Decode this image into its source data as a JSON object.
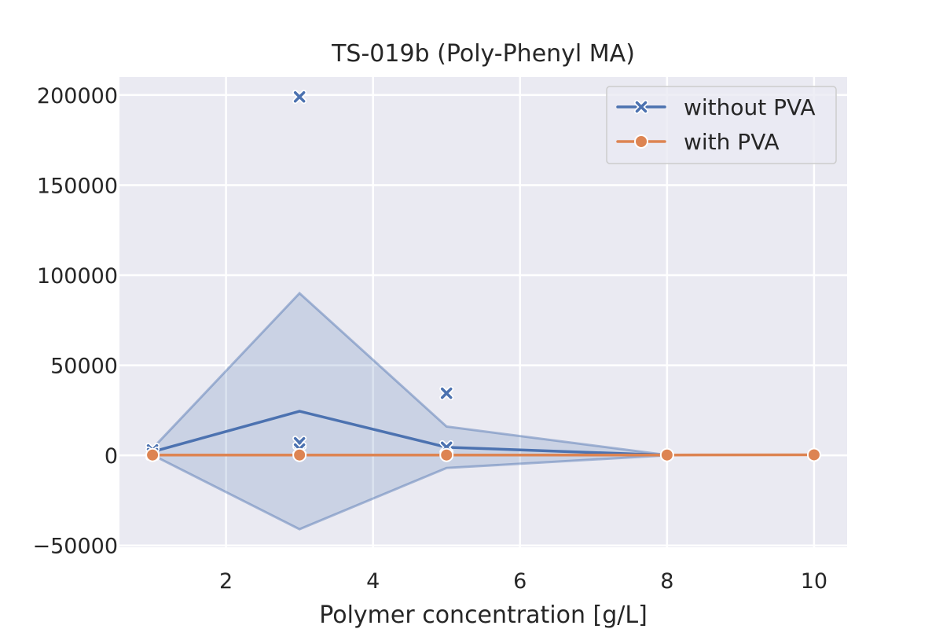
{
  "chart_data": {
    "type": "line",
    "title": "TS-019b (Poly-Phenyl MA)",
    "xlabel": "Polymer concentration [g/L]",
    "ylabel": "",
    "xlim": [
      0.55,
      10.45
    ],
    "ylim": [
      -51000,
      210000
    ],
    "xticks": [
      2,
      4,
      6,
      8,
      10
    ],
    "yticks": [
      -50000,
      0,
      50000,
      100000,
      150000,
      200000
    ],
    "ytick_labels": [
      "−50000",
      "0",
      "50000",
      "100000",
      "150000",
      "200000"
    ],
    "grid": true,
    "legend_position": "top-right",
    "series": [
      {
        "name": "without PVA",
        "color": "#4c72b0",
        "marker": "x",
        "line": [
          {
            "x": 1,
            "y": 2000
          },
          {
            "x": 3,
            "y": 24500
          },
          {
            "x": 5,
            "y": 4500
          },
          {
            "x": 8,
            "y": 100
          }
        ],
        "band": [
          {
            "x": 1,
            "lo": 200,
            "hi": 3800
          },
          {
            "x": 3,
            "lo": -41000,
            "hi": 90000
          },
          {
            "x": 5,
            "lo": -7000,
            "hi": 16000
          },
          {
            "x": 8,
            "lo": 0,
            "hi": 200
          }
        ],
        "points": [
          {
            "x": 1,
            "y": 3000
          },
          {
            "x": 1,
            "y": 1000
          },
          {
            "x": 3,
            "y": 199000
          },
          {
            "x": 3,
            "y": 7000
          },
          {
            "x": 3,
            "y": 3500
          },
          {
            "x": 5,
            "y": 34500
          },
          {
            "x": 5,
            "y": 4500
          }
        ]
      },
      {
        "name": "with PVA",
        "color": "#dd8452",
        "marker": "o",
        "line": [
          {
            "x": 1,
            "y": 200
          },
          {
            "x": 3,
            "y": 200
          },
          {
            "x": 5,
            "y": 200
          },
          {
            "x": 8,
            "y": 200
          },
          {
            "x": 10,
            "y": 300
          }
        ],
        "points": [
          {
            "x": 1,
            "y": 200
          },
          {
            "x": 3,
            "y": 200
          },
          {
            "x": 5,
            "y": 200
          },
          {
            "x": 8,
            "y": 200
          },
          {
            "x": 10,
            "y": 300
          }
        ]
      }
    ]
  }
}
